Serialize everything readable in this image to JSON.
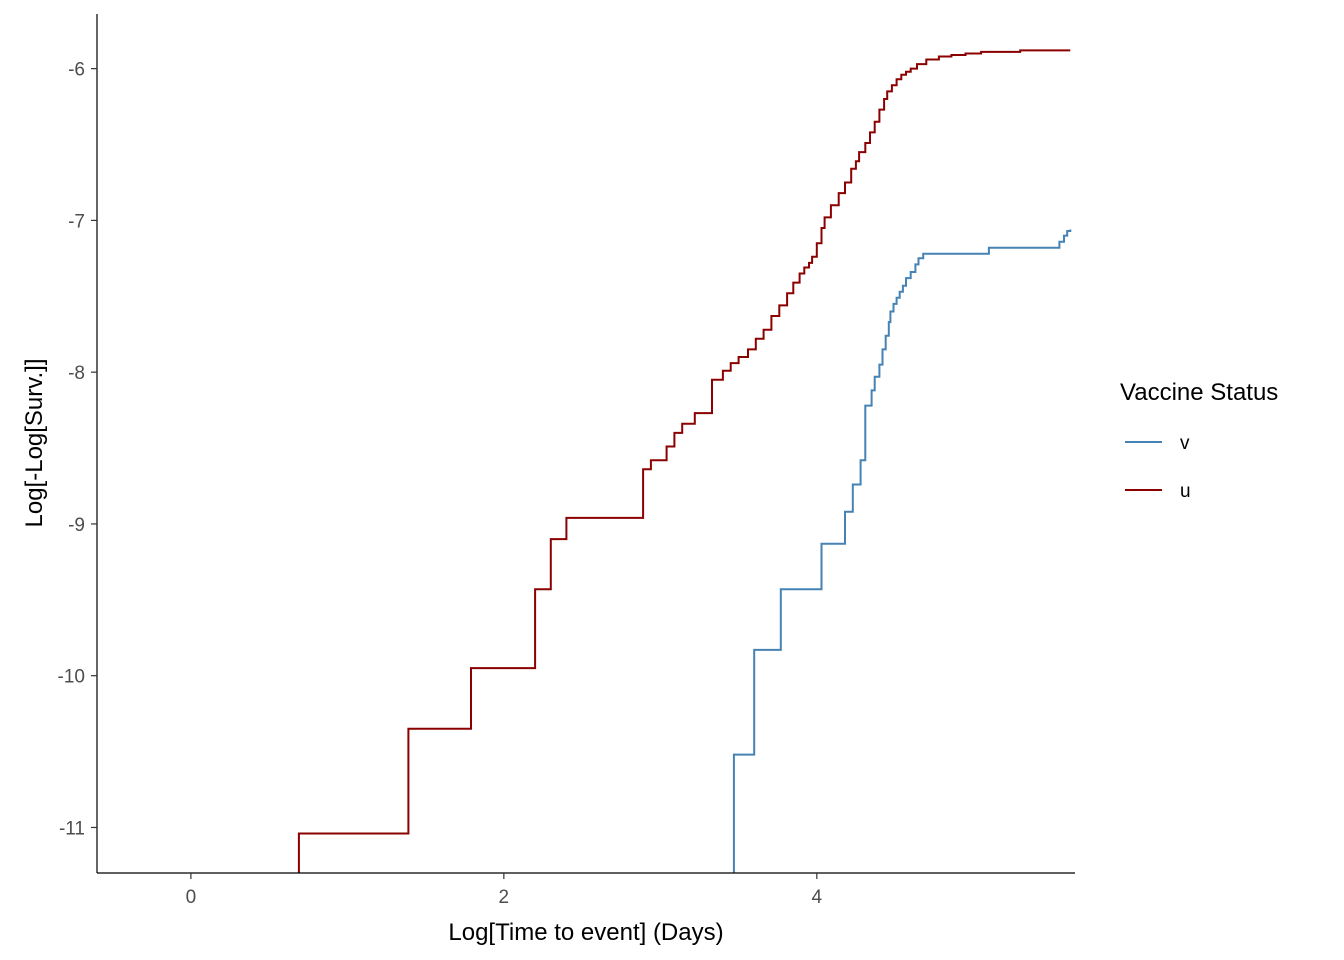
{
  "chart_data": {
    "type": "line",
    "step": true,
    "xlabel": "Log[Time to event] (Days)",
    "ylabel": "Log[-Log[Surv.]]",
    "xlim": [
      -0.6,
      5.65
    ],
    "ylim": [
      -11.3,
      -5.64
    ],
    "x_ticks": [
      0,
      2,
      4
    ],
    "x_tick_labels": [
      "0",
      "2",
      "4"
    ],
    "y_ticks": [
      -11,
      -10,
      -9,
      -8,
      -7,
      -6
    ],
    "y_tick_labels": [
      "-11",
      "-10",
      "-9",
      "-8",
      "-7",
      "-6"
    ],
    "grid": false,
    "legend": {
      "title": "Vaccine Status",
      "position": "right"
    },
    "series": [
      {
        "name": "v",
        "color": "#4682B4",
        "x": [
          3.47,
          3.6,
          3.77,
          4.03,
          4.18,
          4.23,
          4.28,
          4.31,
          4.35,
          4.37,
          4.4,
          4.42,
          4.44,
          4.46,
          4.47,
          4.49,
          4.51,
          4.53,
          4.55,
          4.57,
          4.6,
          4.63,
          4.65,
          4.68,
          4.72,
          5.1,
          5.55,
          5.58,
          5.6,
          5.62
        ],
        "y": [
          -10.52,
          -9.83,
          -9.43,
          -9.13,
          -8.92,
          -8.74,
          -8.58,
          -8.22,
          -8.12,
          -8.03,
          -7.95,
          -7.85,
          -7.76,
          -7.67,
          -7.6,
          -7.55,
          -7.51,
          -7.47,
          -7.43,
          -7.38,
          -7.34,
          -7.29,
          -7.25,
          -7.22,
          -7.22,
          -7.18,
          -7.14,
          -7.1,
          -7.07,
          -7.06
        ]
      },
      {
        "name": "u",
        "color": "#8B0000",
        "x": [
          0.69,
          1.39,
          1.79,
          2.2,
          2.3,
          2.4,
          2.89,
          2.94,
          3.04,
          3.09,
          3.14,
          3.22,
          3.33,
          3.4,
          3.45,
          3.5,
          3.56,
          3.61,
          3.66,
          3.71,
          3.76,
          3.81,
          3.85,
          3.89,
          3.92,
          3.95,
          3.97,
          4.0,
          4.03,
          4.05,
          4.09,
          4.14,
          4.18,
          4.22,
          4.25,
          4.27,
          4.31,
          4.34,
          4.37,
          4.4,
          4.43,
          4.45,
          4.48,
          4.51,
          4.54,
          4.57,
          4.6,
          4.64,
          4.7,
          4.78,
          4.86,
          4.95,
          5.05,
          5.3,
          5.62
        ],
        "y": [
          -11.04,
          -10.35,
          -9.95,
          -9.43,
          -9.1,
          -8.96,
          -8.64,
          -8.58,
          -8.49,
          -8.4,
          -8.34,
          -8.27,
          -8.05,
          -7.99,
          -7.94,
          -7.9,
          -7.85,
          -7.78,
          -7.72,
          -7.63,
          -7.56,
          -7.48,
          -7.41,
          -7.35,
          -7.31,
          -7.28,
          -7.24,
          -7.15,
          -7.05,
          -6.98,
          -6.9,
          -6.82,
          -6.75,
          -6.66,
          -6.61,
          -6.55,
          -6.49,
          -6.42,
          -6.35,
          -6.27,
          -6.2,
          -6.15,
          -6.11,
          -6.07,
          -6.04,
          -6.02,
          -6.0,
          -5.97,
          -5.94,
          -5.92,
          -5.91,
          -5.9,
          -5.89,
          -5.88,
          -5.88
        ]
      }
    ]
  }
}
